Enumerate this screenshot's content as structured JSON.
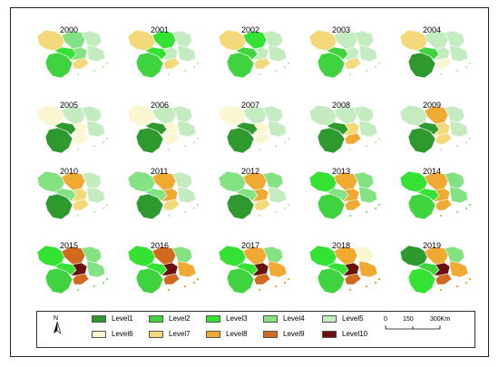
{
  "colors": {
    "Level1": "#2e9a2e",
    "Level2": "#3fd43f",
    "Level3": "#33e233",
    "Level4": "#83e383",
    "Level5": "#c4ecc0",
    "Level6": "#faf6d2",
    "Level7": "#f4d97a",
    "Level8": "#f0aa32",
    "Level9": "#d1691e",
    "Level10": "#6b1010"
  },
  "legend": {
    "north_label": "N",
    "items": [
      {
        "label": "Level1",
        "key": "Level1"
      },
      {
        "label": "Level2",
        "key": "Level2"
      },
      {
        "label": "Level3",
        "key": "Level3"
      },
      {
        "label": "Level4",
        "key": "Level4"
      },
      {
        "label": "Level5",
        "key": "Level5"
      },
      {
        "label": "Level6",
        "key": "Level6"
      },
      {
        "label": "Level7",
        "key": "Level7"
      },
      {
        "label": "Level8",
        "key": "Level8"
      },
      {
        "label": "Level9",
        "key": "Level9"
      },
      {
        "label": "Level10",
        "key": "Level10"
      }
    ],
    "scale": {
      "t0": "0",
      "t1": "150",
      "t2": "300Km"
    }
  },
  "maps": [
    {
      "year": "2000",
      "levels": [
        "Level7",
        "Level4",
        "Level2",
        "Level3",
        "Level4",
        "Level7",
        "Level5",
        "Level5"
      ]
    },
    {
      "year": "2001",
      "levels": [
        "Level7",
        "Level3",
        "Level2",
        "Level3",
        "Level5",
        "Level7",
        "Level5",
        "Level5"
      ]
    },
    {
      "year": "2002",
      "levels": [
        "Level7",
        "Level3",
        "Level2",
        "Level2",
        "Level5",
        "Level7",
        "Level5",
        "Level5"
      ]
    },
    {
      "year": "2003",
      "levels": [
        "Level7",
        "Level5",
        "Level2",
        "Level2",
        "Level5",
        "Level7",
        "Level5",
        "Level5"
      ]
    },
    {
      "year": "2004",
      "levels": [
        "Level7",
        "Level5",
        "Level1",
        "Level2",
        "Level5",
        "Level6",
        "Level5",
        "Level5"
      ]
    },
    {
      "year": "2005",
      "levels": [
        "Level6",
        "Level5",
        "Level1",
        "Level1",
        "Level6",
        "Level6",
        "Level5",
        "Level5"
      ]
    },
    {
      "year": "2006",
      "levels": [
        "Level6",
        "Level5",
        "Level1",
        "Level1",
        "Level6",
        "Level6",
        "Level5",
        "Level5"
      ]
    },
    {
      "year": "2007",
      "levels": [
        "Level6",
        "Level5",
        "Level1",
        "Level1",
        "Level6",
        "Level6",
        "Level5",
        "Level5"
      ]
    },
    {
      "year": "2008",
      "levels": [
        "Level5",
        "Level5",
        "Level1",
        "Level1",
        "Level7",
        "Level8",
        "Level5",
        "Level5"
      ]
    },
    {
      "year": "2009",
      "levels": [
        "Level5",
        "Level8",
        "Level1",
        "Level1",
        "Level7",
        "Level7",
        "Level5",
        "Level5"
      ]
    },
    {
      "year": "2010",
      "levels": [
        "Level4",
        "Level8",
        "Level1",
        "Level4",
        "Level7",
        "Level7",
        "Level5",
        "Level5"
      ]
    },
    {
      "year": "2011",
      "levels": [
        "Level4",
        "Level8",
        "Level1",
        "Level4",
        "Level8",
        "Level7",
        "Level5",
        "Level5"
      ]
    },
    {
      "year": "2012",
      "levels": [
        "Level4",
        "Level8",
        "Level1",
        "Level4",
        "Level8",
        "Level7",
        "Level4",
        "Level5"
      ]
    },
    {
      "year": "2013",
      "levels": [
        "Level3",
        "Level8",
        "Level2",
        "Level4",
        "Level8",
        "Level8",
        "Level4",
        "Level4"
      ]
    },
    {
      "year": "2014",
      "levels": [
        "Level3",
        "Level8",
        "Level2",
        "Level3",
        "Level8",
        "Level8",
        "Level4",
        "Level4"
      ]
    },
    {
      "year": "2015",
      "levels": [
        "Level3",
        "Level9",
        "Level2",
        "Level3",
        "Level10",
        "Level9",
        "Level4",
        "Level4"
      ]
    },
    {
      "year": "2016",
      "levels": [
        "Level3",
        "Level9",
        "Level2",
        "Level3",
        "Level10",
        "Level9",
        "Level4",
        "Level8"
      ]
    },
    {
      "year": "2017",
      "levels": [
        "Level3",
        "Level8",
        "Level2",
        "Level3",
        "Level10",
        "Level9",
        "Level4",
        "Level8"
      ]
    },
    {
      "year": "2018",
      "levels": [
        "Level3",
        "Level8",
        "Level2",
        "Level3",
        "Level10",
        "Level9",
        "Level6",
        "Level8"
      ]
    },
    {
      "year": "2019",
      "levels": [
        "Level1",
        "Level8",
        "Level3",
        "Level2",
        "Level10",
        "Level9",
        "Level4",
        "Level8"
      ]
    }
  ]
}
